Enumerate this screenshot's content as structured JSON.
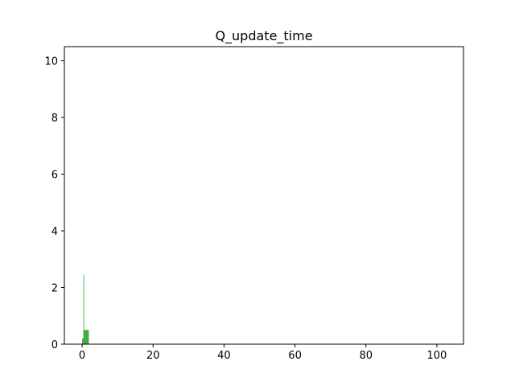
{
  "chart_data": {
    "type": "bar",
    "title": "Q_update_time",
    "xlabel": "",
    "ylabel": "",
    "xlim": [
      -5,
      107.5
    ],
    "ylim": [
      0,
      10.5
    ],
    "x_ticks": [
      0,
      20,
      40,
      60,
      80,
      100
    ],
    "y_ticks": [
      0,
      2,
      4,
      6,
      8,
      10
    ],
    "grid": false,
    "bar_color": "#2ca02c",
    "bars": [
      {
        "x0": 0.0,
        "x1": 0.35,
        "value": 0.2
      },
      {
        "x0": 0.35,
        "x1": 0.55,
        "value": 2.45
      },
      {
        "x0": 0.55,
        "x1": 1.9,
        "value": 0.5
      }
    ]
  }
}
